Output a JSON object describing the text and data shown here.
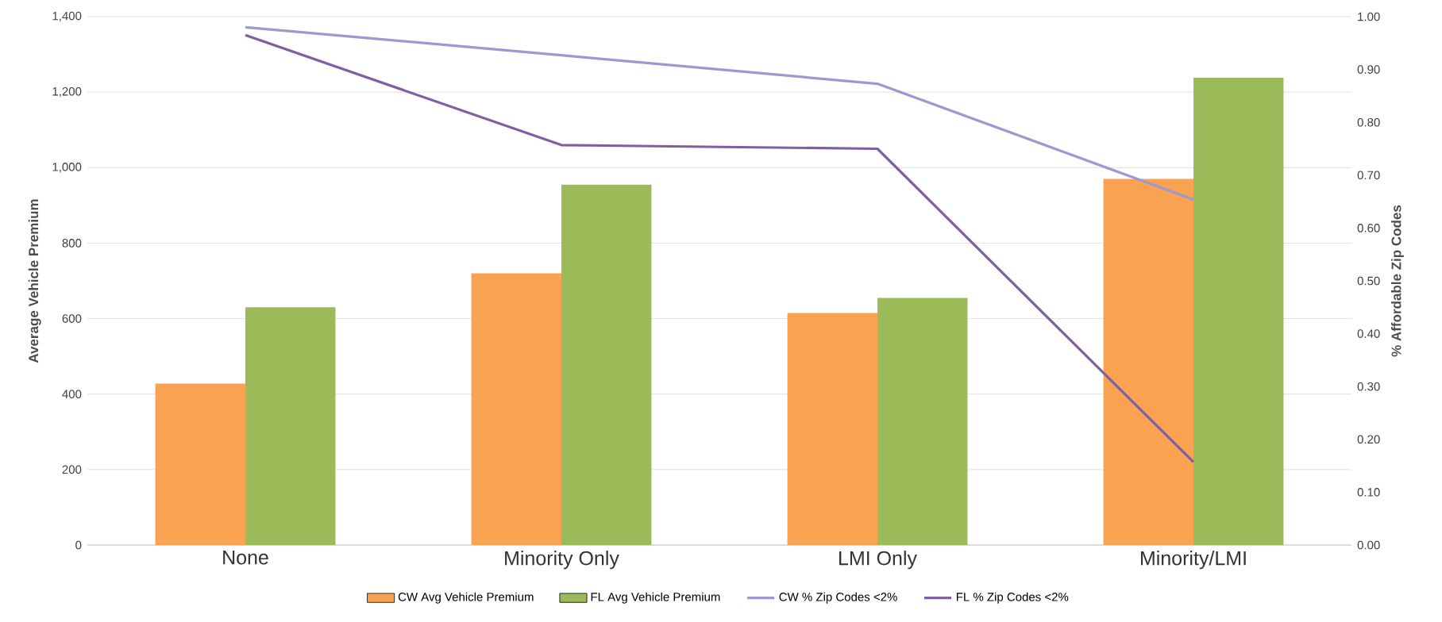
{
  "chart_data": {
    "type": "bar",
    "ylabel": "Average Vehicle Premium",
    "y2label": "% Affordable Zip Codes",
    "categories": [
      "None",
      "Minority Only",
      "LMI Only",
      "Minority/LMI"
    ],
    "series": [
      {
        "name": "CW Avg Vehicle Premium",
        "color": "#f9a352",
        "values": [
          428,
          720,
          615,
          970
        ]
      },
      {
        "name": "FL Avg Vehicle Premium",
        "color": "#9bbb59",
        "values": [
          630,
          955,
          655,
          1238
        ]
      },
      {
        "name": "CW % Zip Codes <2%",
        "type": "line",
        "axis": "y2",
        "color": "#9a9ad0",
        "values": [
          0.98,
          0.927,
          0.873,
          0.654
        ]
      },
      {
        "name": "FL % Zip Codes <2%",
        "type": "line",
        "axis": "y2",
        "color": "#7f5fa0",
        "values": [
          0.965,
          0.757,
          0.75,
          0.157
        ]
      }
    ],
    "ylim": [
      0,
      1400
    ],
    "yticks": [
      0,
      200,
      400,
      600,
      800,
      {
        "value": 1000,
        "label": "1,000"
      },
      {
        "value": 1200,
        "label": "1,200"
      },
      {
        "value": 1400,
        "label": "1,400"
      }
    ],
    "y2lim": [
      0,
      1
    ],
    "y2ticks": [
      {
        "value": 0,
        "label": "0.00"
      },
      {
        "value": 0.1,
        "label": "0.10"
      },
      {
        "value": 0.2,
        "label": "0.20"
      },
      {
        "value": 0.3,
        "label": "0.30"
      },
      {
        "value": 0.4,
        "label": "0.40"
      },
      {
        "value": 0.5,
        "label": "0.50"
      },
      {
        "value": 0.6,
        "label": "0.60"
      },
      {
        "value": 0.7,
        "label": "0.70"
      },
      {
        "value": 0.8,
        "label": "0.80"
      },
      {
        "value": 0.9,
        "label": "0.90"
      },
      {
        "value": 1,
        "label": "1.00"
      }
    ],
    "grid": "y",
    "legend": "bottom"
  }
}
